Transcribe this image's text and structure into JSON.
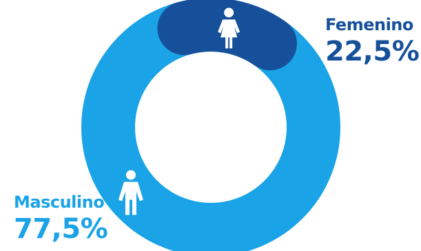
{
  "colors": {
    "masculino": "#1AA3E6",
    "femenino": "#16509A",
    "icon": "#ffffff"
  },
  "icons": {
    "femenino": "female-person-icon",
    "masculino": "male-person-icon"
  },
  "chart_data": {
    "type": "pie",
    "variant": "donut",
    "categories": [
      "Masculino",
      "Femenino"
    ],
    "values": [
      77.5,
      22.5
    ],
    "value_labels": [
      "77,5%",
      "22,5%"
    ],
    "title": "",
    "legend": "none"
  }
}
